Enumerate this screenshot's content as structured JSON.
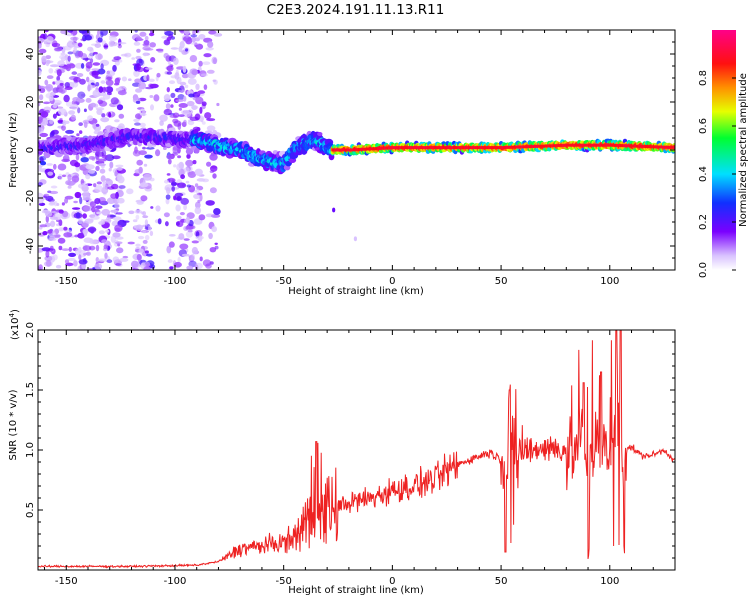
{
  "title": "C2E3.2024.191.11.13.R11",
  "chart_data": [
    {
      "type": "heatmap",
      "xlabel": "Height of straight line (km)",
      "ylabel": "Frequency (Hz)",
      "xlim": [
        -163,
        130
      ],
      "ylim": [
        -50,
        50
      ],
      "x_ticks": [
        -150,
        -100,
        -50,
        0,
        50,
        100
      ],
      "y_ticks": [
        -40,
        -20,
        0,
        20,
        40
      ],
      "colorbar": {
        "label": "Normalized spectral amplitude",
        "range": [
          0,
          1
        ],
        "ticks": [
          "0.0",
          "0.2",
          "0.4",
          "0.6",
          "0.8"
        ],
        "colormap": "rainbow (white-lavender-purple-blue-cyan-green-yellow-red-magenta)"
      },
      "colors": {
        "low": "#e6d6ff",
        "mid_low": "#7a00ff",
        "mid": "#00e0ff",
        "mid_high": "#00ff40",
        "high": "#ff2020",
        "top": "#ff0080"
      },
      "band_center_hz": [
        {
          "x": -160,
          "y": 1
        },
        {
          "x": -140,
          "y": 2
        },
        {
          "x": -120,
          "y": 6
        },
        {
          "x": -90,
          "y": 4
        },
        {
          "x": -80,
          "y": 2
        },
        {
          "x": -70,
          "y": 0
        },
        {
          "x": -60,
          "y": -4
        },
        {
          "x": -50,
          "y": -6
        },
        {
          "x": -45,
          "y": 0
        },
        {
          "x": -40,
          "y": 3
        },
        {
          "x": -35,
          "y": 4
        },
        {
          "x": -28,
          "y": 0
        },
        {
          "x": -20,
          "y": 0
        },
        {
          "x": 0,
          "y": 1
        },
        {
          "x": 20,
          "y": 1
        },
        {
          "x": 50,
          "y": 1
        },
        {
          "x": 80,
          "y": 2
        },
        {
          "x": 100,
          "y": 2
        },
        {
          "x": 130,
          "y": 1
        }
      ]
    },
    {
      "type": "line",
      "xlabel": "Height of straight line (km)",
      "ylabel": "SNR (10 * v/v)",
      "y_scale_label": "(x10",
      "y_scale_exp": "4",
      "xlim": [
        -163,
        130
      ],
      "ylim": [
        0,
        20000
      ],
      "x_ticks": [
        -150,
        -100,
        -50,
        0,
        50,
        100
      ],
      "y_ticks": [
        "0.5",
        "1.0",
        "1.5",
        "2.0"
      ],
      "color": "#ee2222",
      "series_envelope": [
        {
          "x": -163,
          "y": 300
        },
        {
          "x": -120,
          "y": 300
        },
        {
          "x": -90,
          "y": 400
        },
        {
          "x": -80,
          "y": 700
        },
        {
          "x": -75,
          "y": 1200
        },
        {
          "x": -70,
          "y": 1800
        },
        {
          "x": -60,
          "y": 2000
        },
        {
          "x": -50,
          "y": 2300
        },
        {
          "x": -45,
          "y": 2700
        },
        {
          "x": -40,
          "y": 4000
        },
        {
          "x": -35,
          "y": 4500
        },
        {
          "x": -30,
          "y": 5000
        },
        {
          "x": -20,
          "y": 5600
        },
        {
          "x": -10,
          "y": 6000
        },
        {
          "x": 0,
          "y": 6600
        },
        {
          "x": 10,
          "y": 7000
        },
        {
          "x": 20,
          "y": 7600
        },
        {
          "x": 30,
          "y": 8800
        },
        {
          "x": 40,
          "y": 9500
        },
        {
          "x": 45,
          "y": 9800
        },
        {
          "x": 50,
          "y": 9200
        },
        {
          "x": 60,
          "y": 9900
        },
        {
          "x": 70,
          "y": 10200
        },
        {
          "x": 80,
          "y": 10000
        },
        {
          "x": 90,
          "y": 10200
        },
        {
          "x": 100,
          "y": 10300
        },
        {
          "x": 110,
          "y": 10200
        },
        {
          "x": 115,
          "y": 9500
        },
        {
          "x": 120,
          "y": 9600
        },
        {
          "x": 125,
          "y": 10000
        },
        {
          "x": 130,
          "y": 9100
        }
      ],
      "spikes": [
        {
          "x": -35,
          "y": 10700
        },
        {
          "x": 52,
          "y": 1500
        },
        {
          "x": 54,
          "y": 15000
        },
        {
          "x": 88,
          "y": 15600
        },
        {
          "x": 96,
          "y": 16500
        },
        {
          "x": 103,
          "y": 20000
        },
        {
          "x": 105,
          "y": 20000
        }
      ]
    }
  ]
}
